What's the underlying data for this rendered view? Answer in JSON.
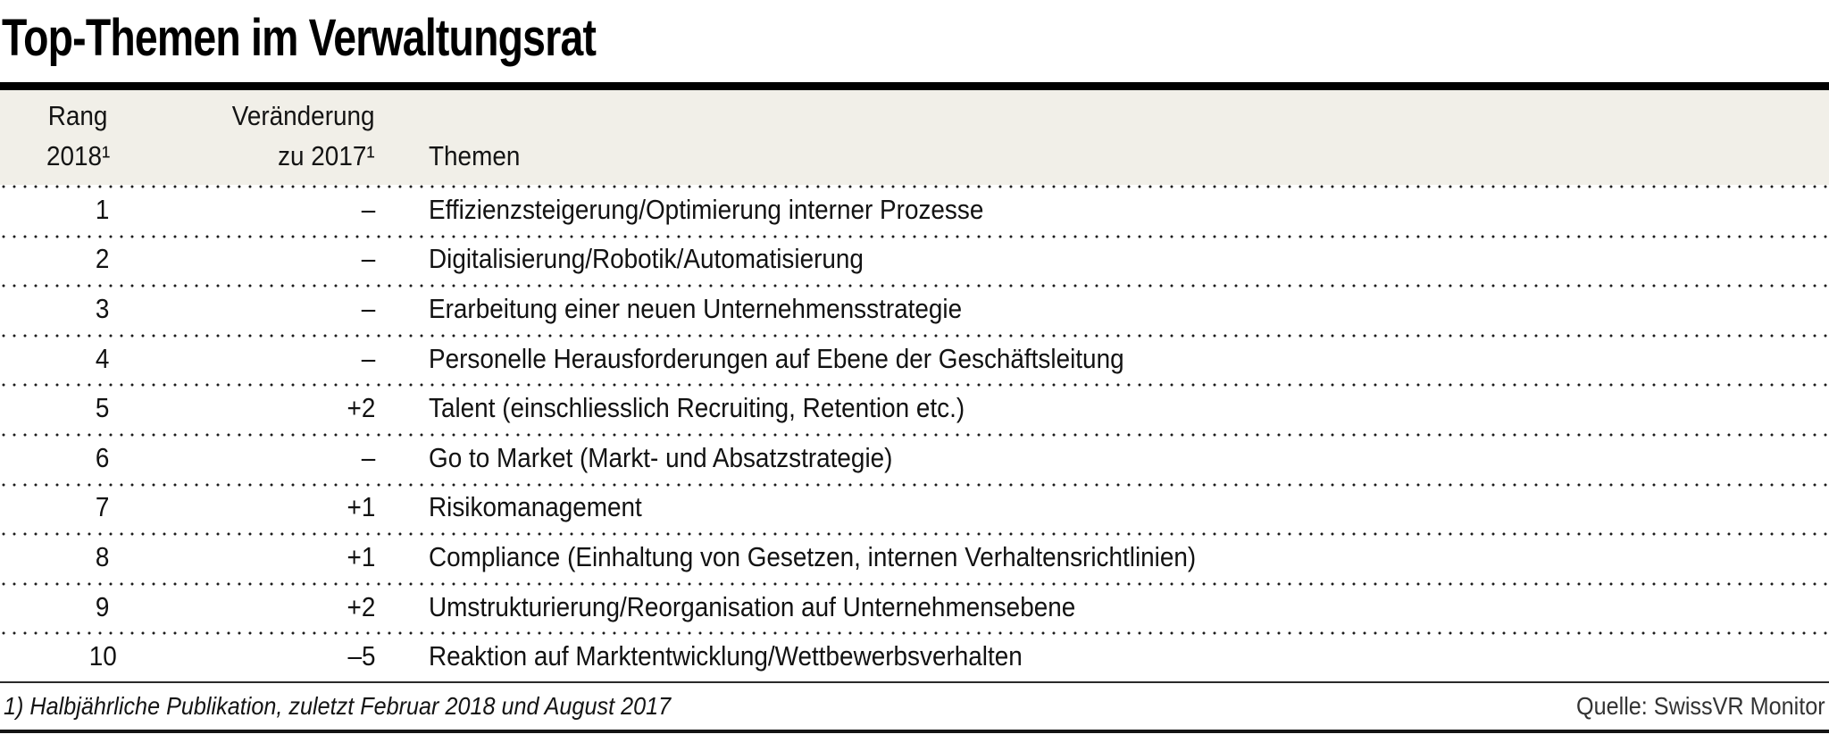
{
  "title": "Top-Themen im Verwaltungsrat",
  "header": {
    "rank_line1": "Rang",
    "rank_line2": "2018¹",
    "change_line1": "Veränderung",
    "change_line2": "zu 2017¹",
    "topic": "Themen"
  },
  "chart_data": {
    "type": "table",
    "title": "Top-Themen im Verwaltungsrat",
    "columns": [
      "Rang 2018¹",
      "Veränderung zu 2017¹",
      "Themen"
    ],
    "rows": [
      {
        "rank": "1",
        "change": "–",
        "topic": "Effizienzsteigerung/Optimierung interner Prozesse"
      },
      {
        "rank": "2",
        "change": "–",
        "topic": "Digitalisierung/Robotik/Automatisierung"
      },
      {
        "rank": "3",
        "change": "–",
        "topic": "Erarbeitung einer neuen Unternehmensstrategie"
      },
      {
        "rank": "4",
        "change": "–",
        "topic": "Personelle Herausforderungen auf Ebene der Geschäftsleitung"
      },
      {
        "rank": "5",
        "change": "+2",
        "topic": "Talent (einschliesslich Recruiting, Retention etc.)"
      },
      {
        "rank": "6",
        "change": "–",
        "topic": "Go to Market (Markt- und Absatzstrategie)"
      },
      {
        "rank": "7",
        "change": "+1",
        "topic": "Risikomanagement"
      },
      {
        "rank": "8",
        "change": "+1",
        "topic": "Compliance (Einhaltung von Gesetzen, internen Verhaltensrichtlinien)"
      },
      {
        "rank": "9",
        "change": "+2",
        "topic": "Umstrukturierung/Reorganisation auf Unternehmensebene"
      },
      {
        "rank": "10",
        "change": "–5",
        "topic": "Reaktion auf Marktentwicklung/Wettbewerbsverhalten"
      }
    ],
    "footnote": "1) Halbjährliche Publikation, zuletzt Februar 2018 und August 2017",
    "source": "Quelle: SwissVR Monitor"
  },
  "colors": {
    "header_bg": "#f1efe8",
    "text": "#121212",
    "rule": "#000000"
  }
}
